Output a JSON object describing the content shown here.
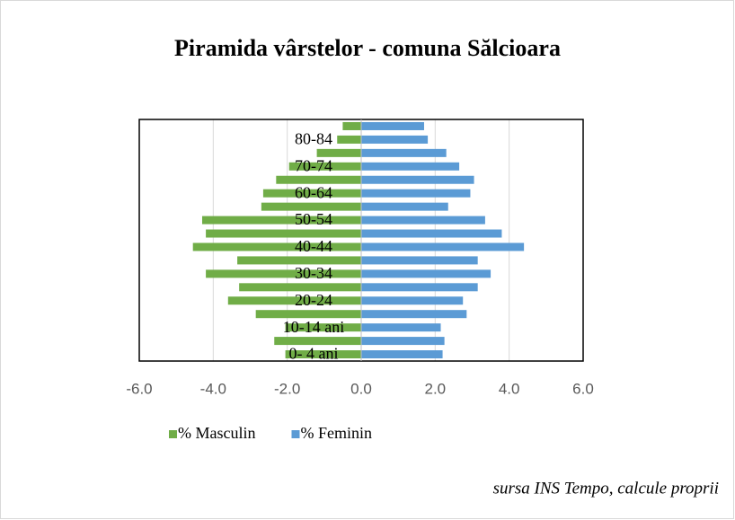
{
  "chart_data": {
    "type": "bar",
    "orientation": "horizontal",
    "stacked": true,
    "title": "Piramida vârstelor - comuna Sălcioara",
    "categories": [
      "0- 4 ani",
      null,
      "10-14 ani",
      null,
      "20-24",
      null,
      "30-34",
      null,
      "40-44",
      null,
      "50-54",
      null,
      "60-64",
      null,
      "70-74",
      null,
      "80-84",
      null
    ],
    "series": [
      {
        "name": "% Masculin",
        "color": "#70ad47",
        "values": [
          -2.05,
          -2.35,
          -2.05,
          -2.85,
          -3.6,
          -3.3,
          -4.2,
          -3.35,
          -4.55,
          -4.2,
          -4.3,
          -2.7,
          -2.65,
          -2.3,
          -1.95,
          -1.2,
          -0.65,
          -0.5
        ]
      },
      {
        "name": "% Feminin",
        "color": "#5b9bd5",
        "values": [
          2.2,
          2.25,
          2.15,
          2.85,
          2.75,
          3.15,
          3.5,
          3.15,
          4.4,
          3.8,
          3.35,
          2.35,
          2.95,
          3.05,
          2.65,
          2.3,
          1.8,
          1.7
        ]
      }
    ],
    "xlim": [
      -6,
      6
    ],
    "xticks": [
      {
        "value": -6,
        "label": "-6.0"
      },
      {
        "value": -4,
        "label": "-4.0"
      },
      {
        "value": -2,
        "label": "-2.0"
      },
      {
        "value": 0,
        "label": "0.0"
      },
      {
        "value": 2,
        "label": "2.0"
      },
      {
        "value": 4,
        "label": "4.0"
      },
      {
        "value": 6,
        "label": "6.0"
      }
    ],
    "grid": true,
    "legend": "bottom",
    "source": "sursa INS Tempo, calcule proprii"
  }
}
